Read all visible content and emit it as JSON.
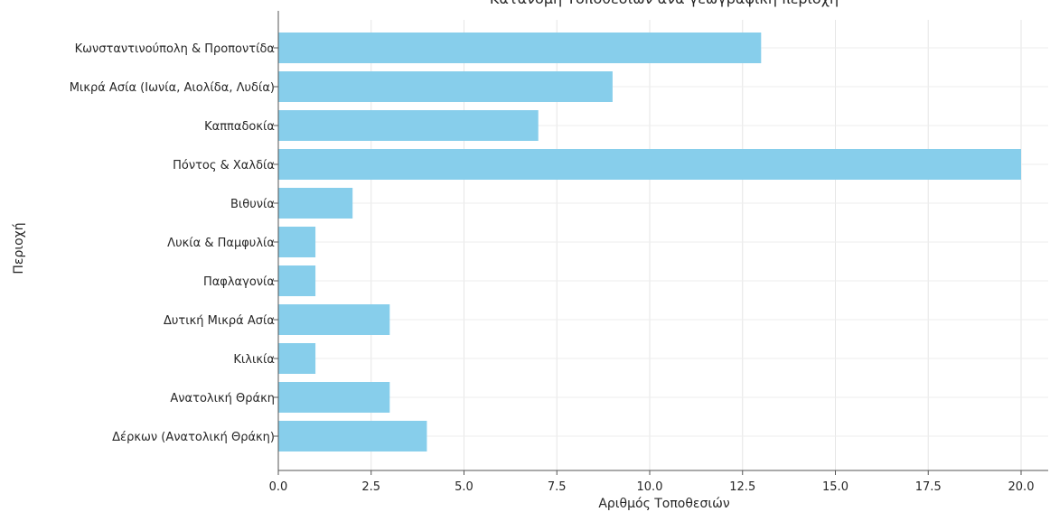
{
  "chart_data": {
    "type": "bar",
    "orientation": "horizontal",
    "title": "Κατανομή Τοποθεσιών ανά γεωγραφική περιοχή",
    "xlabel": "Αριθμός Τοποθεσιών",
    "ylabel": "Περιοχή",
    "categories": [
      "Κωνσταντινούπολη & Προποντίδα",
      "Μικρά Ασία (Ιωνία, Αιολίδα, Λυδία)",
      "Καππαδοκία",
      "Πόντος & Χαλδία",
      "Βιθυνία",
      "Λυκία & Παμφυλία",
      "Παφλαγονία",
      "Δυτική Μικρά Ασία",
      "Κιλικία",
      "Ανατολική Θράκη",
      "Δέρκων (Ανατολική Θράκη)"
    ],
    "values": [
      13,
      9,
      7,
      20,
      2,
      1,
      1,
      3,
      1,
      3,
      4
    ],
    "xlim": [
      0,
      20
    ],
    "xticks": [
      "0.0",
      "2.5",
      "5.0",
      "7.5",
      "10.0",
      "12.5",
      "15.0",
      "17.5",
      "20.0"
    ],
    "grid": true,
    "bar_color": "#87ceeb"
  }
}
